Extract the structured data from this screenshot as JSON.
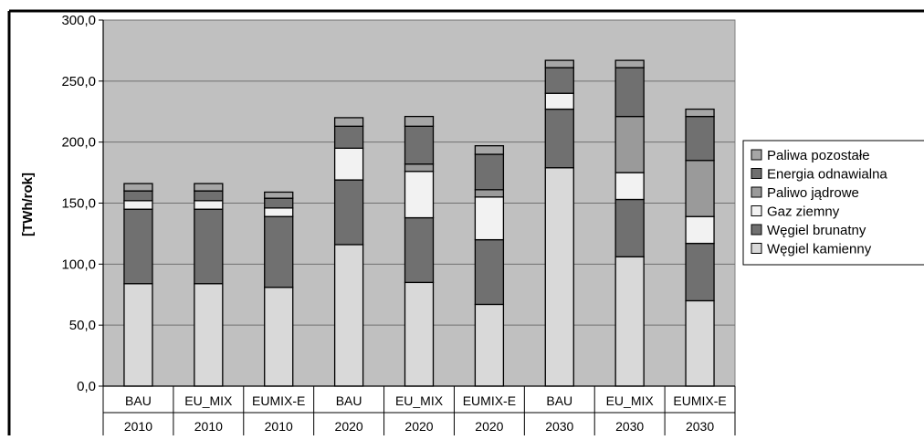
{
  "chart_data": {
    "type": "bar",
    "stacked": true,
    "ylabel": "[TWh/rok]",
    "ylim": [
      0,
      300
    ],
    "yticks": [
      "0,0",
      "50,0",
      "100,0",
      "150,0",
      "200,0",
      "250,0",
      "300,0"
    ],
    "ytick_values": [
      0,
      50,
      100,
      150,
      200,
      250,
      300
    ],
    "grid": true,
    "legend_position": "right",
    "categories": [
      {
        "scenario": "BAU",
        "year": "2010"
      },
      {
        "scenario": "EU_MIX",
        "year": "2010"
      },
      {
        "scenario": "EUMIX-E",
        "year": "2010"
      },
      {
        "scenario": "BAU",
        "year": "2020"
      },
      {
        "scenario": "EU_MIX",
        "year": "2020"
      },
      {
        "scenario": "EUMIX-E",
        "year": "2020"
      },
      {
        "scenario": "BAU",
        "year": "2030"
      },
      {
        "scenario": "EU_MIX",
        "year": "2030"
      },
      {
        "scenario": "EUMIX-E",
        "year": "2030"
      }
    ],
    "series": [
      {
        "name": "Węgiel kamienny",
        "color": "#d9d9d9",
        "values": [
          84,
          84,
          81,
          116,
          85,
          67,
          179,
          106,
          70
        ]
      },
      {
        "name": "Węgiel brunatny",
        "color": "#707070",
        "values": [
          61,
          61,
          58,
          53,
          53,
          53,
          48,
          47,
          47
        ]
      },
      {
        "name": "Gaz ziemny",
        "color": "#f2f2f2",
        "values": [
          7,
          7,
          7,
          26,
          38,
          35,
          13,
          22,
          22
        ]
      },
      {
        "name": "Paliwo jądrowe",
        "color": "#9a9a9a",
        "values": [
          0,
          0,
          0,
          0,
          6,
          6,
          0,
          46,
          46
        ]
      },
      {
        "name": "Energia odnawialna",
        "color": "#707070",
        "values": [
          8,
          8,
          8,
          18,
          31,
          29,
          21,
          40,
          36
        ]
      },
      {
        "name": "Paliwa pozostałe",
        "color": "#a6a6a6",
        "values": [
          6,
          6,
          5,
          7,
          8,
          7,
          6,
          6,
          6
        ]
      }
    ],
    "plot_background": "#c0c0c0",
    "grid_color": "#707070"
  }
}
